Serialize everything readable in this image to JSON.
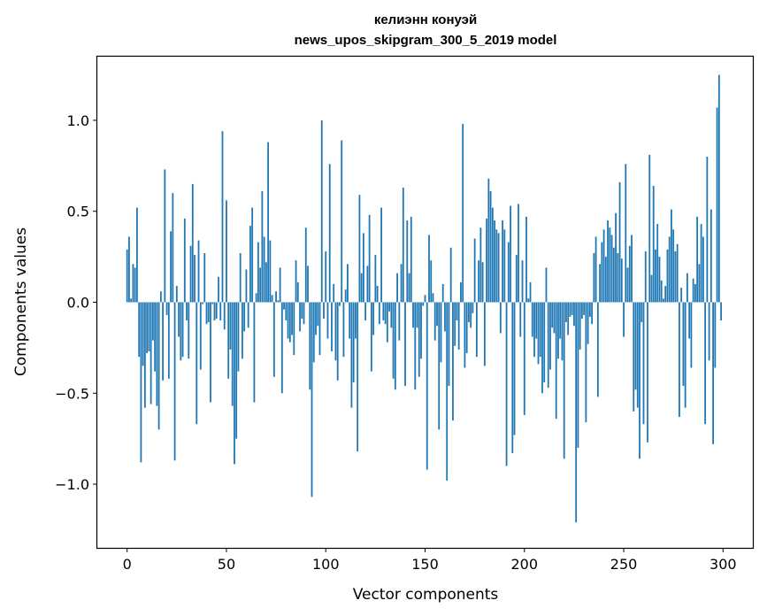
{
  "chart_data": {
    "type": "bar",
    "title": [
      "келиэнн конуэй",
      "news_upos_skipgram_300_5_2019 model"
    ],
    "xlabel": "Vector components",
    "ylabel": "Components values",
    "xlim": [
      -15,
      315
    ],
    "ylim": [
      -1.35,
      1.35
    ],
    "xticks": [
      0,
      50,
      100,
      150,
      200,
      250,
      300
    ],
    "yticks": [
      -1.0,
      -0.5,
      0.0,
      0.5,
      1.0
    ],
    "ytick_labels": [
      "−1.0",
      "−0.5",
      "0.0",
      "0.5",
      "1.0"
    ],
    "bar_color": "#1f77b4",
    "values": [
      0.29,
      0.36,
      0.02,
      0.21,
      0.19,
      0.52,
      -0.3,
      -0.88,
      -0.35,
      -0.58,
      -0.28,
      -0.27,
      -0.56,
      -0.21,
      -0.38,
      -0.57,
      -0.7,
      0.06,
      -0.43,
      0.73,
      -0.07,
      -0.42,
      0.39,
      0.6,
      -0.87,
      0.09,
      -0.19,
      -0.32,
      -0.3,
      0.46,
      -0.1,
      -0.31,
      0.31,
      0.65,
      0.26,
      -0.67,
      0.34,
      -0.37,
      -0.01,
      0.27,
      -0.12,
      -0.11,
      -0.55,
      -0.01,
      -0.1,
      -0.09,
      0.14,
      -0.1,
      0.94,
      -0.15,
      0.56,
      -0.42,
      -0.26,
      -0.57,
      -0.89,
      -0.75,
      -0.38,
      0.27,
      -0.31,
      -0.16,
      0.18,
      -0.14,
      0.42,
      0.52,
      -0.55,
      0.05,
      0.33,
      0.19,
      0.61,
      0.36,
      0.22,
      0.88,
      0.34,
      0.04,
      -0.41,
      0.06,
      0.01,
      0.19,
      -0.5,
      -0.04,
      -0.1,
      -0.2,
      -0.22,
      -0.18,
      -0.29,
      0.23,
      0.11,
      -0.16,
      -0.09,
      -0.12,
      0.41,
      0.2,
      -0.48,
      -1.07,
      -0.33,
      -0.18,
      -0.13,
      -0.29,
      1.0,
      -0.09,
      0.28,
      -0.2,
      0.76,
      -0.27,
      0.1,
      -0.32,
      -0.43,
      -0.02,
      0.89,
      -0.3,
      0.07,
      0.21,
      -0.2,
      -0.58,
      -0.44,
      -0.2,
      -0.82,
      0.59,
      0.16,
      0.38,
      -0.1,
      0.2,
      0.48,
      -0.38,
      -0.18,
      0.26,
      0.09,
      -0.12,
      0.52,
      -0.1,
      -0.12,
      -0.22,
      -0.05,
      -0.14,
      -0.42,
      -0.48,
      0.16,
      -0.21,
      0.21,
      0.63,
      -0.46,
      0.45,
      0.16,
      0.47,
      -0.14,
      -0.48,
      -0.14,
      -0.41,
      -0.31,
      -0.02,
      0.04,
      -0.92,
      0.37,
      0.23,
      0.05,
      -0.21,
      -0.13,
      -0.7,
      -0.33,
      0.1,
      -0.16,
      -0.98,
      -0.46,
      0.3,
      -0.65,
      -0.24,
      -0.1,
      -0.26,
      0.11,
      0.98,
      -0.36,
      -0.28,
      -0.11,
      -0.14,
      -0.06,
      0.35,
      -0.3,
      0.23,
      0.41,
      0.22,
      -0.35,
      0.46,
      0.68,
      0.61,
      0.52,
      0.45,
      0.4,
      0.38,
      -0.17,
      0.45,
      0.4,
      -0.9,
      0.33,
      0.53,
      -0.83,
      -0.73,
      0.26,
      0.54,
      -0.19,
      0.23,
      -0.62,
      0.47,
      0.02,
      0.11,
      -0.19,
      -0.3,
      -0.2,
      -0.34,
      -0.3,
      -0.5,
      -0.44,
      0.19,
      -0.47,
      -0.37,
      -0.14,
      -0.17,
      -0.64,
      -0.31,
      -0.2,
      -0.32,
      -0.86,
      -0.11,
      -0.18,
      -0.08,
      -0.07,
      -0.13,
      -1.21,
      -0.8,
      -0.26,
      -0.09,
      -0.07,
      -0.66,
      -0.23,
      -0.08,
      -0.12,
      0.27,
      0.36,
      -0.52,
      0.21,
      0.33,
      0.4,
      0.25,
      0.45,
      0.41,
      0.37,
      0.3,
      0.49,
      0.27,
      0.66,
      0.24,
      -0.19,
      0.76,
      0.19,
      0.31,
      0.37,
      -0.6,
      -0.48,
      -0.58,
      -0.86,
      -0.11,
      -0.67,
      0.28,
      -0.77,
      0.81,
      0.15,
      0.64,
      0.29,
      0.43,
      0.25,
      0.12,
      0.02,
      0.09,
      0.29,
      0.36,
      0.51,
      0.4,
      0.28,
      0.32,
      -0.63,
      0.08,
      -0.46,
      -0.58,
      0.16,
      -0.2,
      -0.36,
      0.13,
      0.1,
      0.47,
      0.21,
      0.43,
      0.36,
      -0.67,
      0.8,
      -0.32,
      0.51,
      -0.78,
      -0.36,
      1.07,
      1.25,
      -0.1
    ]
  }
}
